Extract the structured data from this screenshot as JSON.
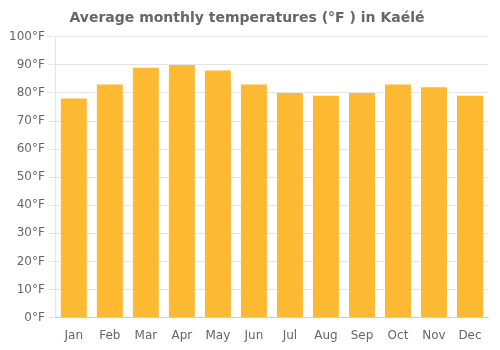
{
  "chart_data": {
    "type": "bar",
    "title": "Average monthly temperatures (°F ) in Kaélé",
    "categories": [
      "Jan",
      "Feb",
      "Mar",
      "Apr",
      "May",
      "Jun",
      "Jul",
      "Aug",
      "Sep",
      "Oct",
      "Nov",
      "Dec"
    ],
    "values": [
      78,
      83,
      89,
      90,
      88,
      83,
      80,
      79,
      80,
      83,
      82,
      79
    ],
    "color": "#FDB931",
    "ylim": [
      0,
      100
    ],
    "yticks": [
      {
        "value": 0,
        "label": "0°F"
      },
      {
        "value": 10,
        "label": "10°F"
      },
      {
        "value": 20,
        "label": "20°F"
      },
      {
        "value": 30,
        "label": "30°F"
      },
      {
        "value": 40,
        "label": "40°F"
      },
      {
        "value": 50,
        "label": "50°F"
      },
      {
        "value": 60,
        "label": "60°F"
      },
      {
        "value": 70,
        "label": "70°F"
      },
      {
        "value": 80,
        "label": "80°F"
      },
      {
        "value": 90,
        "label": "90°F"
      },
      {
        "value": 100,
        "label": "100°F"
      }
    ],
    "grid": true
  }
}
